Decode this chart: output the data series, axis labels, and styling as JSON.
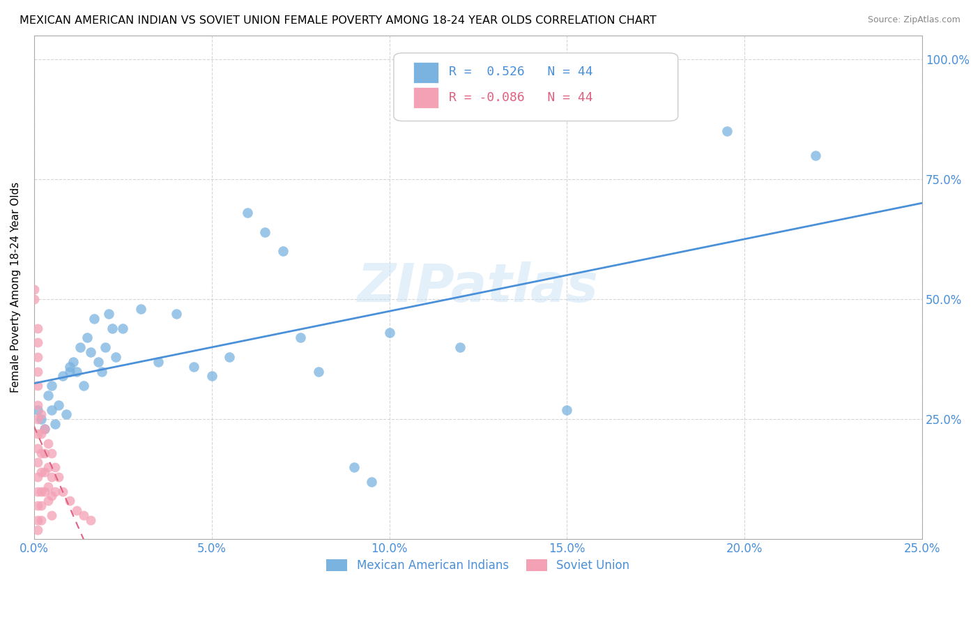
{
  "title": "MEXICAN AMERICAN INDIAN VS SOVIET UNION FEMALE POVERTY AMONG 18-24 YEAR OLDS CORRELATION CHART",
  "source": "Source: ZipAtlas.com",
  "ylabel": "Female Poverty Among 18-24 Year Olds",
  "x_ticks": [
    0.0,
    0.05,
    0.1,
    0.15,
    0.2,
    0.25
  ],
  "x_tick_labels": [
    "0.0%",
    "5.0%",
    "10.0%",
    "15.0%",
    "20.0%",
    "25.0%"
  ],
  "y_ticks_right": [
    0.0,
    0.25,
    0.5,
    0.75,
    1.0
  ],
  "y_tick_labels_right": [
    "",
    "25.0%",
    "50.0%",
    "75.0%",
    "100.0%"
  ],
  "xlim": [
    0.0,
    0.25
  ],
  "ylim": [
    0.0,
    1.05
  ],
  "blue_color": "#7ab3e0",
  "pink_color": "#f4a0b5",
  "blue_line_color": "#4a90d9",
  "pink_line_color": "#e06080",
  "legend_R_blue": "R =  0.526",
  "legend_N_blue": "N = 44",
  "legend_R_pink": "R = -0.086",
  "legend_N_pink": "N = 44",
  "watermark": "ZIPatlas",
  "label_blue": "Mexican American Indians",
  "label_pink": "Soviet Union",
  "blue_scatter": [
    [
      0.001,
      0.27
    ],
    [
      0.002,
      0.25
    ],
    [
      0.003,
      0.23
    ],
    [
      0.004,
      0.3
    ],
    [
      0.005,
      0.32
    ],
    [
      0.005,
      0.27
    ],
    [
      0.006,
      0.24
    ],
    [
      0.007,
      0.28
    ],
    [
      0.008,
      0.34
    ],
    [
      0.009,
      0.26
    ],
    [
      0.01,
      0.36
    ],
    [
      0.01,
      0.35
    ],
    [
      0.011,
      0.37
    ],
    [
      0.012,
      0.35
    ],
    [
      0.013,
      0.4
    ],
    [
      0.014,
      0.32
    ],
    [
      0.015,
      0.42
    ],
    [
      0.016,
      0.39
    ],
    [
      0.017,
      0.46
    ],
    [
      0.018,
      0.37
    ],
    [
      0.019,
      0.35
    ],
    [
      0.02,
      0.4
    ],
    [
      0.021,
      0.47
    ],
    [
      0.022,
      0.44
    ],
    [
      0.023,
      0.38
    ],
    [
      0.025,
      0.44
    ],
    [
      0.03,
      0.48
    ],
    [
      0.035,
      0.37
    ],
    [
      0.04,
      0.47
    ],
    [
      0.045,
      0.36
    ],
    [
      0.05,
      0.34
    ],
    [
      0.055,
      0.38
    ],
    [
      0.06,
      0.68
    ],
    [
      0.065,
      0.64
    ],
    [
      0.07,
      0.6
    ],
    [
      0.075,
      0.42
    ],
    [
      0.08,
      0.35
    ],
    [
      0.09,
      0.15
    ],
    [
      0.095,
      0.12
    ],
    [
      0.1,
      0.43
    ],
    [
      0.12,
      0.4
    ],
    [
      0.15,
      0.27
    ],
    [
      0.195,
      0.85
    ],
    [
      0.22,
      0.8
    ]
  ],
  "pink_scatter": [
    [
      0.0,
      0.52
    ],
    [
      0.0,
      0.5
    ],
    [
      0.001,
      0.44
    ],
    [
      0.001,
      0.41
    ],
    [
      0.001,
      0.38
    ],
    [
      0.001,
      0.35
    ],
    [
      0.001,
      0.32
    ],
    [
      0.001,
      0.28
    ],
    [
      0.001,
      0.25
    ],
    [
      0.001,
      0.22
    ],
    [
      0.001,
      0.19
    ],
    [
      0.001,
      0.16
    ],
    [
      0.001,
      0.13
    ],
    [
      0.001,
      0.1
    ],
    [
      0.001,
      0.07
    ],
    [
      0.001,
      0.04
    ],
    [
      0.001,
      0.02
    ],
    [
      0.002,
      0.26
    ],
    [
      0.002,
      0.22
    ],
    [
      0.002,
      0.18
    ],
    [
      0.002,
      0.14
    ],
    [
      0.002,
      0.1
    ],
    [
      0.002,
      0.07
    ],
    [
      0.002,
      0.04
    ],
    [
      0.003,
      0.23
    ],
    [
      0.003,
      0.18
    ],
    [
      0.003,
      0.14
    ],
    [
      0.003,
      0.1
    ],
    [
      0.004,
      0.2
    ],
    [
      0.004,
      0.15
    ],
    [
      0.004,
      0.11
    ],
    [
      0.004,
      0.08
    ],
    [
      0.005,
      0.18
    ],
    [
      0.005,
      0.13
    ],
    [
      0.005,
      0.09
    ],
    [
      0.005,
      0.05
    ],
    [
      0.006,
      0.15
    ],
    [
      0.006,
      0.1
    ],
    [
      0.007,
      0.13
    ],
    [
      0.008,
      0.1
    ],
    [
      0.01,
      0.08
    ],
    [
      0.012,
      0.06
    ],
    [
      0.014,
      0.05
    ],
    [
      0.016,
      0.04
    ]
  ]
}
